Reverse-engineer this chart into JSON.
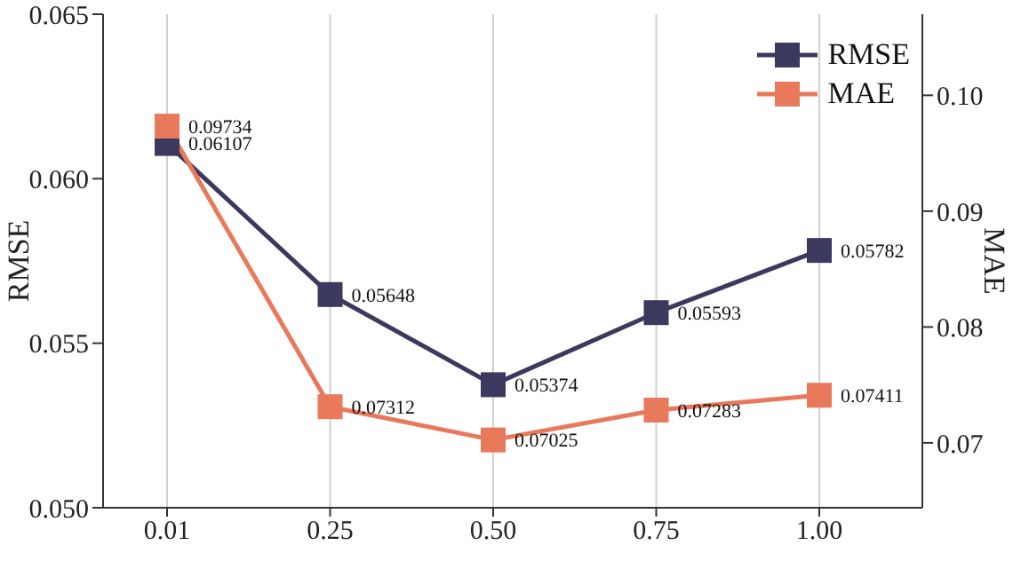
{
  "chart_data": {
    "type": "line",
    "categories": [
      "0.01",
      "0.25",
      "0.50",
      "0.75",
      "1.00"
    ],
    "series": [
      {
        "name": "RMSE",
        "color": "#3b3a5e",
        "values": [
          0.06107,
          0.05648,
          0.05374,
          0.05593,
          0.05782
        ]
      },
      {
        "name": "MAE",
        "color": "#e8795b",
        "values": [
          0.09734,
          0.07312,
          0.07025,
          0.07283,
          0.07411
        ],
        "axis": "y2"
      }
    ],
    "ylabel": "RMSE",
    "y2label": "MAE",
    "ylim": [
      0.05,
      0.065
    ],
    "yticks": [
      {
        "value": 0.05,
        "label": "0.050"
      },
      {
        "value": 0.055,
        "label": "0.055"
      },
      {
        "value": 0.06,
        "label": "0.060"
      },
      {
        "value": 0.065,
        "label": "0.065"
      }
    ],
    "y2lim": [
      0.0644,
      0.107
    ],
    "y2ticks": [
      {
        "value": 0.07,
        "label": "0.07"
      },
      {
        "value": 0.08,
        "label": "0.08"
      },
      {
        "value": 0.09,
        "label": "0.09"
      },
      {
        "value": 0.1,
        "label": "0.10"
      }
    ],
    "grid": "x",
    "legend": "top right",
    "marker": "square",
    "line_style": "solid",
    "data_labels": true
  }
}
